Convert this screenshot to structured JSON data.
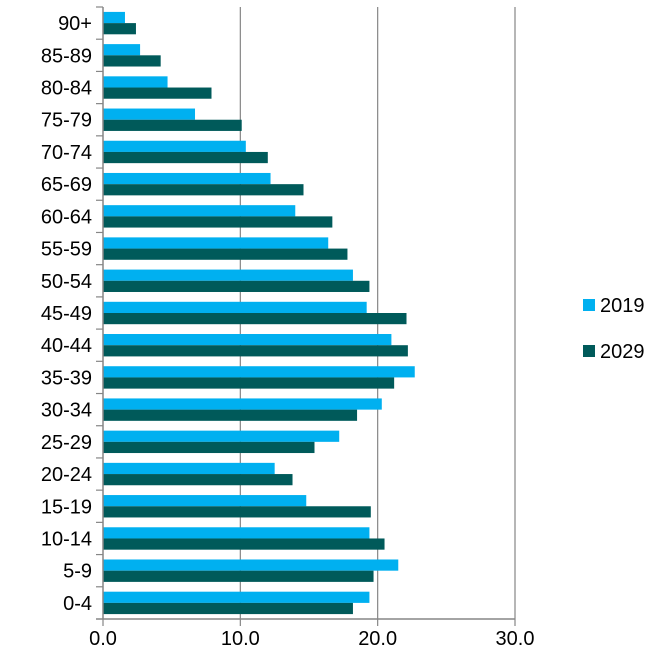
{
  "chart_data": {
    "type": "bar",
    "orientation": "horizontal",
    "categories": [
      "0-4",
      "5-9",
      "10-14",
      "15-19",
      "20-24",
      "25-29",
      "30-34",
      "35-39",
      "40-44",
      "45-49",
      "50-54",
      "55-59",
      "60-64",
      "65-69",
      "70-74",
      "75-79",
      "80-84",
      "85-89",
      "90+"
    ],
    "series": [
      {
        "name": "2019",
        "color": "#00b0f0",
        "values": [
          19.4,
          21.5,
          19.4,
          14.8,
          12.5,
          17.2,
          20.3,
          22.7,
          21.0,
          19.2,
          18.2,
          16.4,
          14.0,
          12.2,
          10.4,
          6.7,
          4.7,
          2.7,
          1.6
        ]
      },
      {
        "name": "2029",
        "color": "#005a5a",
        "values": [
          18.2,
          19.7,
          20.5,
          19.5,
          13.8,
          15.4,
          18.5,
          21.2,
          22.2,
          22.1,
          19.4,
          17.8,
          16.7,
          14.6,
          12.0,
          10.1,
          7.9,
          4.2,
          2.4
        ]
      }
    ],
    "xlim": [
      0,
      30
    ],
    "x_ticks": [
      "0.0",
      "10.0",
      "20.0",
      "30.0"
    ],
    "grid": "vertical",
    "legend_position": "right",
    "title": "",
    "xlabel": "",
    "ylabel": ""
  }
}
